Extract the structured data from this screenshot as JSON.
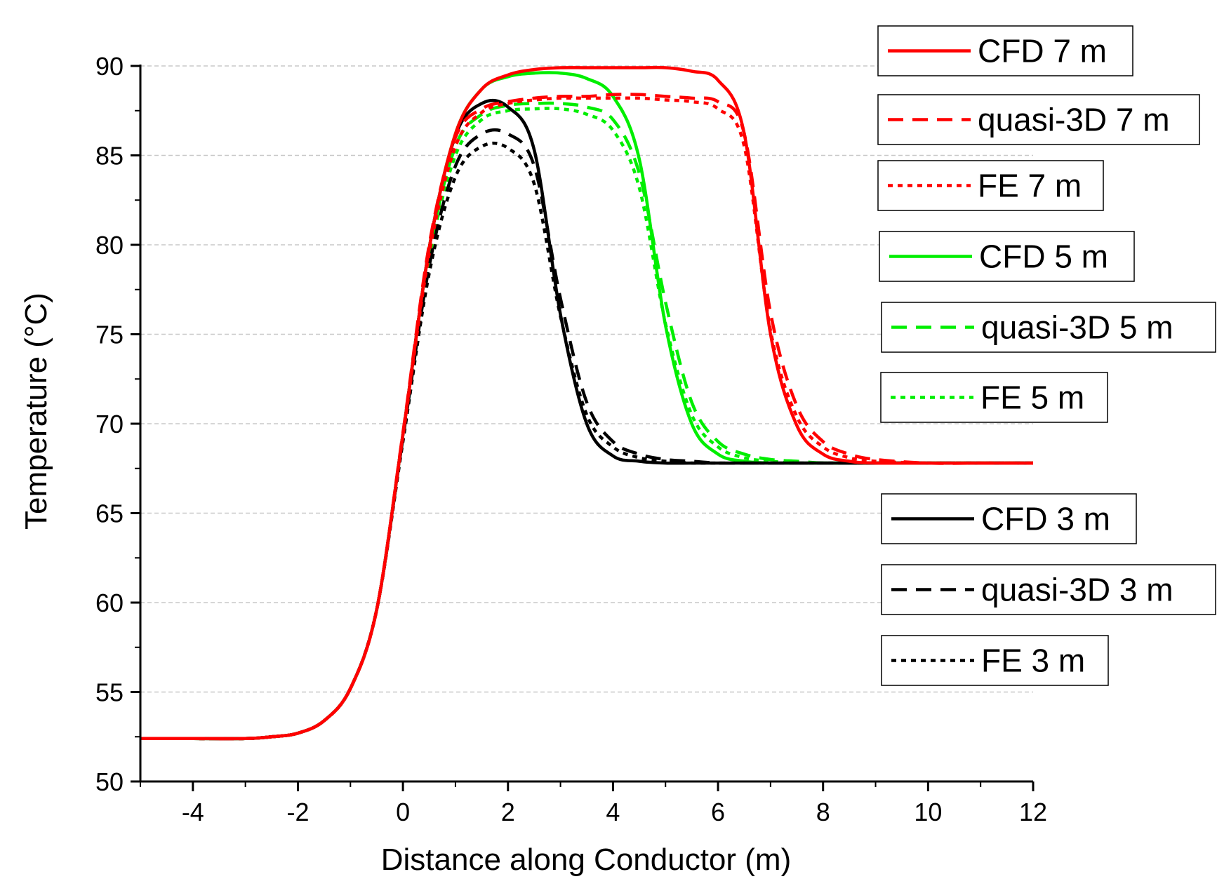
{
  "chart_data": {
    "type": "line",
    "title": "",
    "xlabel": "Distance along Conductor (m)",
    "ylabel": "Temperature (°C)",
    "xlim": [
      -5,
      12
    ],
    "ylim": [
      50,
      90
    ],
    "xticks": [
      -4,
      -2,
      0,
      2,
      4,
      6,
      8,
      10,
      12
    ],
    "yticks": [
      50,
      55,
      60,
      65,
      70,
      75,
      80,
      85,
      90
    ],
    "grid": "horizontal dashed",
    "legend_position": "right",
    "colors": {
      "7m": "#ff0000",
      "5m": "#00ee00",
      "3m": "#000000"
    },
    "x": [
      -5,
      -4,
      -3,
      -2.5,
      -2,
      -1.5,
      -1,
      -0.5,
      0,
      0.5,
      1,
      1.5,
      2,
      2.5,
      3,
      3.5,
      4,
      4.5,
      5,
      5.5,
      6,
      6.5,
      7,
      7.5,
      8,
      8.5,
      9,
      10,
      11,
      12
    ],
    "series": [
      {
        "name": "CFD 7 m",
        "style": "solid",
        "color": "#ff0000",
        "values": [
          52.4,
          52.4,
          52.4,
          52.5,
          52.7,
          53.4,
          55.2,
          59.6,
          69.4,
          79.8,
          86.2,
          88.7,
          89.5,
          89.8,
          89.9,
          89.9,
          89.9,
          89.9,
          89.9,
          89.7,
          89.2,
          86.2,
          75.0,
          69.9,
          68.3,
          67.9,
          67.8,
          67.8,
          67.8,
          67.8
        ]
      },
      {
        "name": "quasi-3D 7 m",
        "style": "dashed",
        "color": "#ff0000",
        "values": [
          52.4,
          52.4,
          52.4,
          52.5,
          52.7,
          53.4,
          55.2,
          59.6,
          69.5,
          80.0,
          86.0,
          87.6,
          88.0,
          88.2,
          88.3,
          88.3,
          88.4,
          88.4,
          88.3,
          88.2,
          88.0,
          86.2,
          76.2,
          71.0,
          69.0,
          68.3,
          68.0,
          67.8,
          67.8,
          67.8
        ]
      },
      {
        "name": "FE 7 m",
        "style": "dotted",
        "color": "#ff0000",
        "values": [
          52.4,
          52.4,
          52.4,
          52.5,
          52.7,
          53.4,
          55.2,
          59.6,
          69.3,
          79.5,
          85.5,
          87.4,
          87.9,
          88.1,
          88.2,
          88.2,
          88.2,
          88.2,
          88.1,
          88.0,
          87.6,
          85.5,
          75.2,
          70.4,
          68.7,
          68.1,
          67.9,
          67.8,
          67.8,
          67.8
        ]
      },
      {
        "name": "CFD 5 m",
        "style": "solid",
        "color": "#00ee00",
        "values": [
          52.4,
          52.4,
          52.4,
          52.5,
          52.7,
          53.4,
          55.2,
          59.6,
          69.4,
          79.8,
          86.2,
          88.7,
          89.4,
          89.6,
          89.6,
          89.3,
          88.3,
          84.8,
          75.5,
          70.0,
          68.3,
          67.9,
          67.8,
          67.8,
          67.8,
          67.8,
          67.8,
          67.8,
          67.8,
          67.8
        ]
      },
      {
        "name": "quasi-3D 5 m",
        "style": "dashed",
        "color": "#00ee00",
        "values": [
          52.4,
          52.4,
          52.4,
          52.5,
          52.7,
          53.4,
          55.2,
          59.6,
          69.3,
          79.5,
          85.5,
          87.3,
          87.8,
          87.9,
          87.9,
          87.7,
          87.0,
          84.0,
          76.8,
          71.2,
          69.0,
          68.3,
          68.0,
          67.9,
          67.8,
          67.8,
          67.8,
          67.8,
          67.8,
          67.8
        ]
      },
      {
        "name": "FE 5 m",
        "style": "dotted",
        "color": "#00ee00",
        "values": [
          52.4,
          52.4,
          52.4,
          52.5,
          52.7,
          53.4,
          55.2,
          59.6,
          69.2,
          79.2,
          85.0,
          87.0,
          87.5,
          87.6,
          87.6,
          87.3,
          86.4,
          83.2,
          75.6,
          70.5,
          68.7,
          68.1,
          67.9,
          67.8,
          67.8,
          67.8,
          67.8,
          67.8,
          67.8,
          67.8
        ]
      },
      {
        "name": "CFD 3 m",
        "style": "solid",
        "color": "#000000",
        "values": [
          52.4,
          52.4,
          52.4,
          52.5,
          52.7,
          53.4,
          55.2,
          59.6,
          69.4,
          79.8,
          86.1,
          87.9,
          87.7,
          85.3,
          76.1,
          70.0,
          68.2,
          67.9,
          67.8,
          67.8,
          67.8,
          67.8,
          67.8,
          67.8,
          67.8,
          67.8,
          67.8,
          67.8,
          67.8,
          67.8
        ]
      },
      {
        "name": "quasi-3D 3 m",
        "style": "dashed",
        "color": "#000000",
        "values": [
          52.4,
          52.4,
          52.4,
          52.5,
          52.7,
          53.4,
          55.2,
          59.6,
          69.2,
          78.8,
          84.4,
          86.2,
          86.2,
          84.4,
          77.0,
          71.2,
          69.0,
          68.3,
          68.0,
          67.9,
          67.8,
          67.8,
          67.8,
          67.8,
          67.8,
          67.8,
          67.8,
          67.8,
          67.8,
          67.8
        ]
      },
      {
        "name": "FE 3 m",
        "style": "dotted",
        "color": "#000000",
        "values": [
          52.4,
          52.4,
          52.4,
          52.5,
          52.7,
          53.4,
          55.2,
          59.6,
          69.0,
          78.4,
          83.8,
          85.5,
          85.4,
          83.4,
          76.0,
          70.5,
          68.7,
          68.1,
          67.9,
          67.8,
          67.8,
          67.8,
          67.8,
          67.8,
          67.8,
          67.8,
          67.8,
          67.8,
          67.8,
          67.8
        ]
      }
    ]
  }
}
